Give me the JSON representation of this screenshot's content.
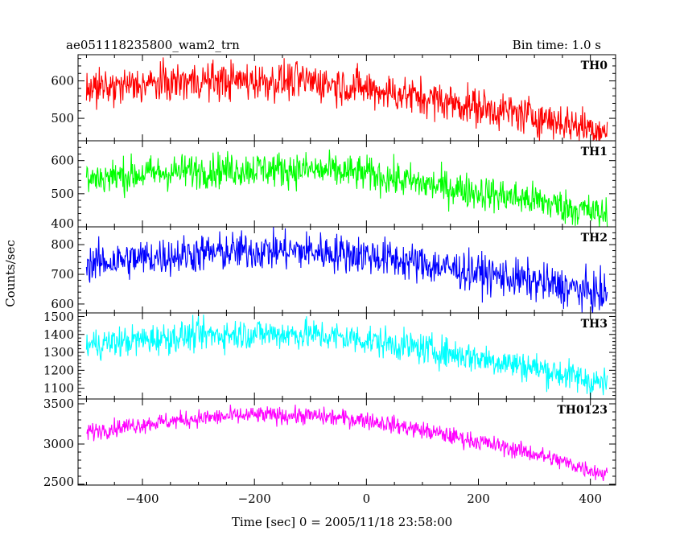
{
  "header": {
    "title": "ae051118235800_wam2_trn",
    "bin_time": "Bin time: 1.0 s"
  },
  "chart_data": {
    "type": "line",
    "xlabel": "Time [sec] 0 = 2005/11/18 23:58:00",
    "ylabel": "Counts/sec",
    "xlim": [
      -515,
      445
    ],
    "x_range": [
      -500,
      430
    ],
    "x_ticks": [
      -400,
      -200,
      0,
      200,
      400
    ],
    "x_tick_labels": [
      "−400",
      "−200",
      "0",
      "200",
      "400"
    ],
    "bin_time_s": 1.0,
    "panels": [
      {
        "name": "TH0",
        "color": "#ff0000",
        "ylim": [
          440,
          670
        ],
        "y_ticks": [
          500,
          600
        ],
        "y_tick_labels": [
          "500",
          "600"
        ],
        "trend": [
          [
            -500,
            575
          ],
          [
            -400,
            590
          ],
          [
            -300,
            600
          ],
          [
            -200,
            600
          ],
          [
            -100,
            600
          ],
          [
            0,
            580
          ],
          [
            100,
            555
          ],
          [
            200,
            530
          ],
          [
            300,
            505
          ],
          [
            430,
            465
          ]
        ],
        "noise": 26
      },
      {
        "name": "TH1",
        "color": "#00ff00",
        "ylim": [
          400,
          660
        ],
        "y_ticks": [
          400,
          500,
          600
        ],
        "y_tick_labels": [
          "400",
          "500",
          "600"
        ],
        "trend": [
          [
            -500,
            545
          ],
          [
            -400,
            560
          ],
          [
            -300,
            570
          ],
          [
            -200,
            575
          ],
          [
            -100,
            572
          ],
          [
            0,
            560
          ],
          [
            100,
            530
          ],
          [
            200,
            505
          ],
          [
            300,
            480
          ],
          [
            430,
            435
          ]
        ],
        "noise": 27
      },
      {
        "name": "TH2",
        "color": "#0000ff",
        "ylim": [
          570,
          860
        ],
        "y_ticks": [
          600,
          700,
          800
        ],
        "y_tick_labels": [
          "600",
          "700",
          "800"
        ],
        "trend": [
          [
            -500,
            735
          ],
          [
            -400,
            755
          ],
          [
            -300,
            770
          ],
          [
            -200,
            780
          ],
          [
            -100,
            778
          ],
          [
            0,
            765
          ],
          [
            100,
            735
          ],
          [
            200,
            705
          ],
          [
            300,
            675
          ],
          [
            430,
            630
          ]
        ],
        "noise": 33
      },
      {
        "name": "TH3",
        "color": "#00ffff",
        "ylim": [
          1040,
          1520
        ],
        "y_ticks": [
          1100,
          1200,
          1300,
          1400,
          1500
        ],
        "y_tick_labels": [
          "1100",
          "1200",
          "1300",
          "1400",
          "1500"
        ],
        "trend": [
          [
            -500,
            1340
          ],
          [
            -400,
            1370
          ],
          [
            -300,
            1395
          ],
          [
            -200,
            1405
          ],
          [
            -100,
            1400
          ],
          [
            0,
            1370
          ],
          [
            100,
            1320
          ],
          [
            200,
            1270
          ],
          [
            300,
            1215
          ],
          [
            430,
            1120
          ]
        ],
        "noise": 44
      },
      {
        "name": "TH0123",
        "color": "#ff00ff",
        "ylim": [
          2490,
          3560
        ],
        "y_ticks": [
          2500,
          3000,
          3500
        ],
        "y_tick_labels": [
          "2500",
          "3000",
          "3500"
        ],
        "trend": [
          [
            -500,
            3150
          ],
          [
            -400,
            3250
          ],
          [
            -300,
            3320
          ],
          [
            -200,
            3360
          ],
          [
            -100,
            3350
          ],
          [
            0,
            3300
          ],
          [
            100,
            3170
          ],
          [
            200,
            3030
          ],
          [
            300,
            2880
          ],
          [
            430,
            2620
          ]
        ],
        "noise": 55
      }
    ]
  }
}
